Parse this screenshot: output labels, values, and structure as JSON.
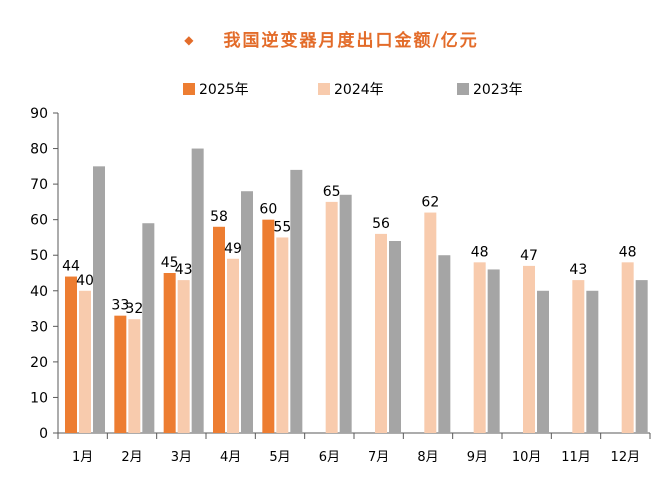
{
  "chart_data": {
    "type": "bar",
    "title": "我国逆变器月度出口金额/亿元",
    "title_marker": "◆",
    "categories": [
      "1月",
      "2月",
      "3月",
      "4月",
      "5月",
      "6月",
      "7月",
      "8月",
      "9月",
      "10月",
      "11月",
      "12月"
    ],
    "series": [
      {
        "name": "2025年",
        "color": "#ed7d31",
        "values": [
          44,
          33,
          45,
          58,
          60,
          null,
          null,
          null,
          null,
          null,
          null,
          null
        ],
        "labels_shown": [
          true,
          true,
          true,
          true,
          true,
          false,
          false,
          false,
          false,
          false,
          false,
          false
        ]
      },
      {
        "name": "2024年",
        "color": "#f8cbad",
        "values": [
          40,
          32,
          43,
          49,
          55,
          65,
          56,
          62,
          48,
          47,
          43,
          48
        ],
        "labels_shown": [
          true,
          true,
          true,
          true,
          true,
          true,
          true,
          true,
          true,
          true,
          true,
          true
        ]
      },
      {
        "name": "2023年",
        "color": "#a5a5a5",
        "values": [
          75,
          59,
          80,
          68,
          74,
          67,
          54,
          50,
          46,
          40,
          40,
          43
        ],
        "labels_shown": [
          false,
          false,
          false,
          false,
          false,
          false,
          false,
          false,
          false,
          false,
          false,
          false
        ]
      }
    ],
    "ylim": [
      0,
      90
    ],
    "yticks": [
      0,
      10,
      20,
      30,
      40,
      50,
      60,
      70,
      80,
      90
    ],
    "xlabel": "",
    "ylabel": "",
    "grid": false,
    "legend_position": "top-center"
  }
}
